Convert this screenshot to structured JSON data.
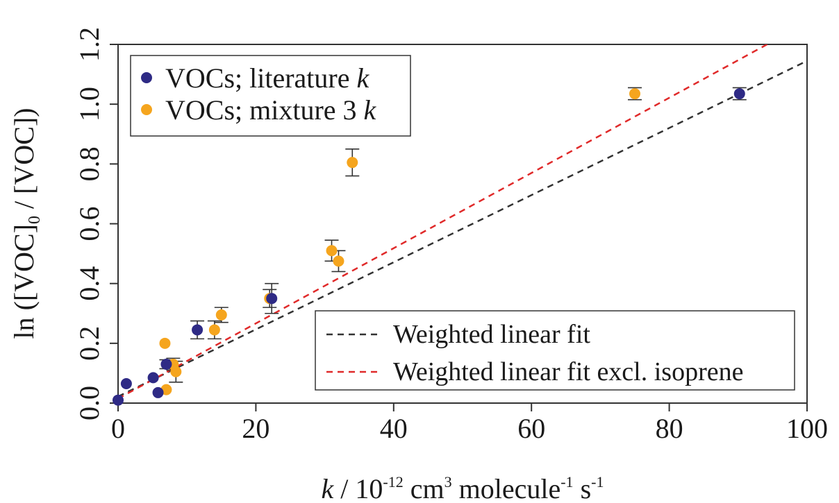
{
  "chart_data": {
    "type": "scatter",
    "title": "",
    "xlabel": {
      "italic": "k",
      "pre": " / 10",
      "sup1": "-12",
      "mid1": " cm",
      "sup2": "3",
      "mid2": " molecule",
      "sup3": "-1",
      "mid3": " s",
      "sup4": "-1"
    },
    "ylabel": {
      "pre": "ln ([VOC]",
      "sub": "0",
      "post": " / [VOC])"
    },
    "xlim": [
      0,
      100
    ],
    "ylim": [
      0,
      1.2
    ],
    "x_ticks": [
      "0",
      "20",
      "40",
      "60",
      "80",
      "100"
    ],
    "y_ticks": [
      "0.0",
      "0.2",
      "0.4",
      "0.6",
      "0.8",
      "1.0",
      "1.2"
    ],
    "grid": false,
    "series": [
      {
        "name": "VOCs; literature k",
        "label_text": "VOCs; literature ",
        "label_italic": "k",
        "color": "#2e2a85",
        "points": [
          {
            "x": 0.0,
            "y": 0.01,
            "err": 0
          },
          {
            "x": 1.2,
            "y": 0.065,
            "err": 0
          },
          {
            "x": 5.1,
            "y": 0.085,
            "err": 0
          },
          {
            "x": 5.8,
            "y": 0.035,
            "err": 0
          },
          {
            "x": 7.0,
            "y": 0.13,
            "err": 0.015
          },
          {
            "x": 11.5,
            "y": 0.245,
            "err": 0.03
          },
          {
            "x": 22.3,
            "y": 0.35,
            "err": 0.05
          },
          {
            "x": 90.2,
            "y": 1.035,
            "err": 0.02
          }
        ]
      },
      {
        "name": "VOCs; mixture 3 k",
        "label_text": "VOCs; mixture 3 ",
        "label_italic": "k",
        "color": "#f5a51e",
        "points": [
          {
            "x": 6.8,
            "y": 0.2,
            "err": 0
          },
          {
            "x": 7.0,
            "y": 0.045,
            "err": 0
          },
          {
            "x": 8.0,
            "y": 0.13,
            "err": 0.02
          },
          {
            "x": 8.4,
            "y": 0.105,
            "err": 0.035
          },
          {
            "x": 14.0,
            "y": 0.245,
            "err": 0.03
          },
          {
            "x": 15.0,
            "y": 0.295,
            "err": 0.025
          },
          {
            "x": 22.0,
            "y": 0.35,
            "err": 0.03
          },
          {
            "x": 31.0,
            "y": 0.51,
            "err": 0.035
          },
          {
            "x": 32.0,
            "y": 0.475,
            "err": 0.035
          },
          {
            "x": 34.0,
            "y": 0.805,
            "err": 0.045
          },
          {
            "x": 75.0,
            "y": 1.035,
            "err": 0.02
          }
        ]
      }
    ],
    "fit_lines": [
      {
        "name": "Weighted linear fit",
        "color": "#333333",
        "intercept": 0.022,
        "slope": 0.01123
      },
      {
        "name": "Weighted linear fit excl. isoprene",
        "color": "#e02a2a",
        "intercept": 0.015,
        "slope": 0.01258
      }
    ],
    "legend_points_position": "top-left",
    "legend_lines_position": "bottom-right"
  }
}
